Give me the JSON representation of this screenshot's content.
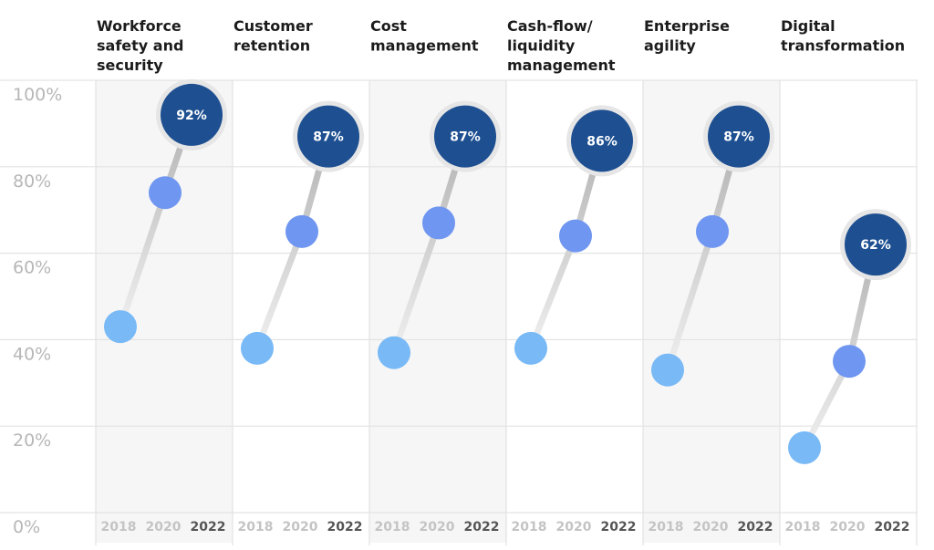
{
  "chart_data": {
    "type": "scatter",
    "title": "",
    "xlabel": "",
    "ylabel": "",
    "ylim": [
      0,
      100
    ],
    "y_ticks": [
      "0%",
      "20%",
      "40%",
      "60%",
      "80%",
      "100%"
    ],
    "grid": true,
    "years": [
      "2018",
      "2020",
      "2022"
    ],
    "categories": [
      {
        "name": "Workforce safety and security",
        "lines": [
          "Workforce",
          "safety and",
          "security"
        ],
        "values": [
          43,
          74,
          92
        ],
        "label": "92%"
      },
      {
        "name": "Customer retention",
        "lines": [
          "Customer",
          "retention"
        ],
        "values": [
          38,
          65,
          87
        ],
        "label": "87%"
      },
      {
        "name": "Cost management",
        "lines": [
          "Cost",
          "management"
        ],
        "values": [
          37,
          67,
          87
        ],
        "label": "87%"
      },
      {
        "name": "Cash-flow/ liquidity management",
        "lines": [
          "Cash-flow/",
          "liquidity",
          "management"
        ],
        "values": [
          38,
          64,
          86
        ],
        "label": "86%"
      },
      {
        "name": "Enterprise agility",
        "lines": [
          "Enterprise",
          "agility"
        ],
        "values": [
          33,
          65,
          87
        ],
        "label": "87%"
      },
      {
        "name": "Digital transformation",
        "lines": [
          "Digital",
          "transformation"
        ],
        "values": [
          15,
          35,
          62
        ],
        "label": "62%"
      }
    ],
    "colors": {
      "y2018": "#78b9f6",
      "y2020": "#6f96f0",
      "y2022": "#1d4f91",
      "ring": "#e6e6e6",
      "shade": "#f6f6f6",
      "grid": "#e3e3e3"
    }
  }
}
